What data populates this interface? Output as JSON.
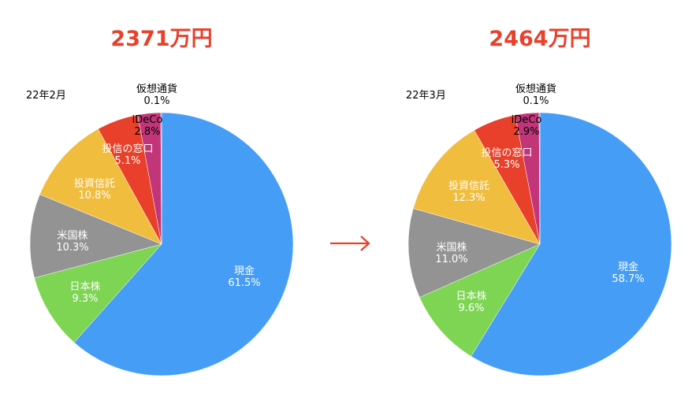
{
  "colors": {
    "title": "#e8412b",
    "arrow": "#e8412b",
    "slices": [
      "#469df5",
      "#7ed453",
      "#939393",
      "#f0bd3e",
      "#e8402a",
      "#c23579",
      "#8a5cc9"
    ]
  },
  "arrow_icon": "right-arrow-icon",
  "chart_data": [
    {
      "type": "pie",
      "title": "2371万円",
      "date_label": "22年2月",
      "categories": [
        "現金",
        "日本株",
        "米国株",
        "投資信託",
        "投信の窓口",
        "iDeCo",
        "仮想通貨"
      ],
      "values": [
        61.5,
        9.3,
        10.3,
        10.8,
        5.1,
        2.8,
        0.1
      ],
      "value_labels": [
        "61.5%",
        "9.3%",
        "10.3%",
        "10.8%",
        "5.1%",
        "2.8%",
        "0.1%"
      ],
      "start": "12 o'clock",
      "direction": "clockwise"
    },
    {
      "type": "pie",
      "title": "2464万円",
      "date_label": "22年3月",
      "categories": [
        "現金",
        "日本株",
        "米国株",
        "投資信託",
        "投信の窓口",
        "iDeCo",
        "仮想通貨"
      ],
      "values": [
        58.7,
        9.6,
        11.0,
        12.3,
        5.3,
        2.9,
        0.1
      ],
      "value_labels": [
        "58.7%",
        "9.6%",
        "11.0%",
        "12.3%",
        "5.3%",
        "2.9%",
        "0.1%"
      ],
      "start": "12 o'clock",
      "direction": "clockwise"
    }
  ]
}
